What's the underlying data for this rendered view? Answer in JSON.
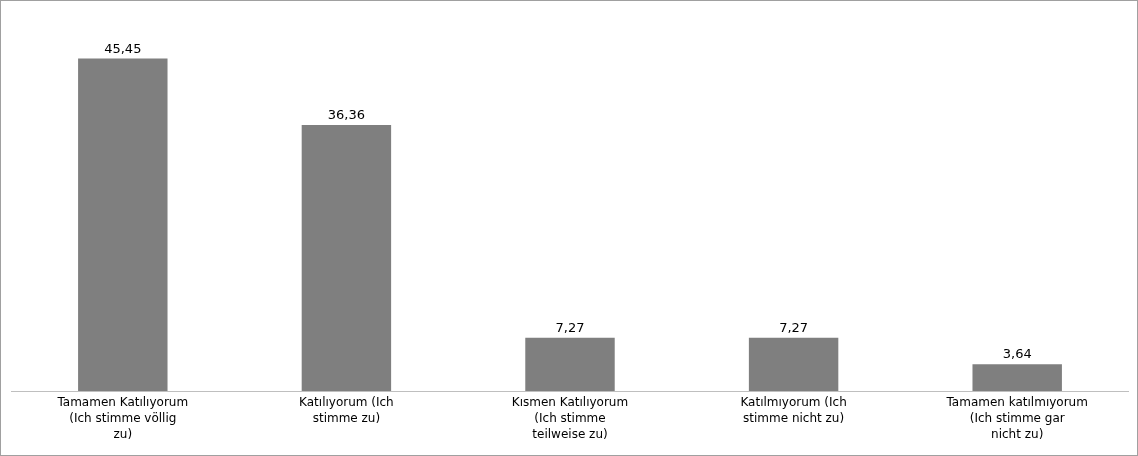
{
  "chart_data": {
    "type": "bar",
    "categories": [
      "Tamamen Katılıyorum (Ich stimme völlig zu)",
      "Katılıyorum (Ich stimme zu)",
      "Kısmen Katılıyorum (Ich stimme teilweise zu)",
      "Katılmıyorum (Ich stimme nicht zu)",
      "Tamamen katılmıyorum (Ich stimme gar nicht zu)"
    ],
    "values": [
      45.45,
      36.36,
      7.27,
      7.27,
      3.64
    ],
    "value_labels": [
      "45,45",
      "36,36",
      "7,27",
      "7,27",
      "3,64"
    ],
    "color": "#7f7f7f"
  }
}
